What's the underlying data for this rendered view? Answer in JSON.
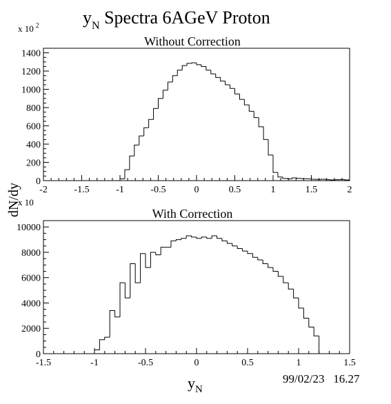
{
  "figure": {
    "title_main": "y",
    "title_sub": "N",
    "title_rest": " Spectra 6AGeV  Proton",
    "ylabel": "dN/dy",
    "xlabel_main": "y",
    "xlabel_sub": "N",
    "timestamp": "99/02/23   16.27"
  },
  "chart_data": [
    {
      "type": "histogram",
      "title": "Without Correction",
      "multiplier": "x 10",
      "multiplier_exp": "2",
      "xlim": [
        -2,
        2
      ],
      "ylim": [
        0,
        1450
      ],
      "xticks": [
        -2,
        -1.5,
        -1,
        -0.5,
        0,
        0.5,
        1,
        1.5,
        2
      ],
      "xtick_labels": [
        "-2",
        "-1.5",
        "-1",
        "-0.5",
        "0",
        "0.5",
        "1",
        "1.5",
        "2"
      ],
      "yticks": [
        0,
        200,
        400,
        600,
        800,
        1000,
        1200,
        1400
      ],
      "ytick_labels": [
        "0",
        "200",
        "400",
        "600",
        "800",
        "1000",
        "1200",
        "1400"
      ],
      "bin_width": 0.0625,
      "bins_start": -1.0,
      "values": [
        20,
        120,
        270,
        390,
        490,
        580,
        670,
        790,
        900,
        990,
        1080,
        1150,
        1210,
        1260,
        1285,
        1290,
        1270,
        1250,
        1210,
        1170,
        1130,
        1090,
        1050,
        1010,
        950,
        890,
        830,
        760,
        690,
        590,
        450,
        280,
        90,
        40,
        25,
        20,
        30,
        25,
        22,
        20,
        15,
        12,
        15,
        10,
        8,
        10,
        12,
        8
      ]
    },
    {
      "type": "histogram",
      "title": "With Correction",
      "multiplier": "x 10",
      "multiplier_exp": "",
      "xlim": [
        -1.5,
        1.5
      ],
      "ylim": [
        0,
        10500
      ],
      "xticks": [
        -1.5,
        -1,
        -0.5,
        0,
        0.5,
        1,
        1.5
      ],
      "xtick_labels": [
        "-1.5",
        "-1",
        "-0.5",
        "0",
        "0.5",
        "1",
        "1.5"
      ],
      "yticks": [
        0,
        2000,
        4000,
        6000,
        8000,
        10000
      ],
      "ytick_labels": [
        "0",
        "2000",
        "4000",
        "6000",
        "8000",
        "10000"
      ],
      "bin_width": 0.05,
      "bins_start": -1.0,
      "values": [
        300,
        1100,
        1300,
        3400,
        2900,
        5600,
        4400,
        7100,
        5600,
        7900,
        6800,
        8000,
        7800,
        8400,
        8400,
        8900,
        9000,
        9100,
        9300,
        9200,
        9100,
        9200,
        9100,
        9300,
        9100,
        8900,
        8700,
        8500,
        8300,
        8100,
        7900,
        7600,
        7400,
        7100,
        6800,
        6500,
        6100,
        5600,
        5100,
        4400,
        3600,
        2800,
        2100,
        1400
      ]
    }
  ]
}
